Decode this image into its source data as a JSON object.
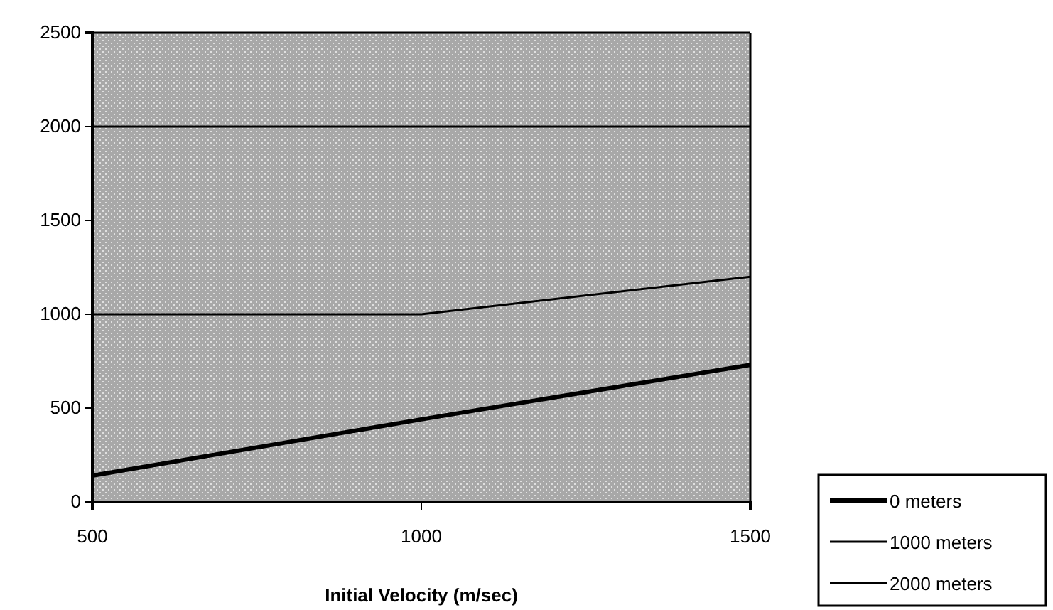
{
  "chart_data": {
    "type": "line",
    "xlabel": "Initial Velocity (m/sec)",
    "x": [
      500,
      1000,
      1500
    ],
    "series": [
      {
        "name": "0 meters",
        "color": "#000000",
        "values": [
          140,
          440,
          730
        ]
      },
      {
        "name": "1000 meters",
        "color": "#000000",
        "values": [
          1000,
          1000,
          1200
        ]
      },
      {
        "name": "2000 meters",
        "color": "#000000",
        "values": [
          2000,
          2000,
          2000
        ]
      }
    ],
    "xlim": [
      500,
      1500
    ],
    "xticks": [
      500,
      1000,
      1500
    ],
    "ylim": [
      0,
      2500
    ],
    "yticks": [
      0,
      500,
      1000,
      1500,
      2000,
      2500
    ],
    "legend": "bottom right",
    "grid": false,
    "marker": "none",
    "line_style": "solid"
  }
}
